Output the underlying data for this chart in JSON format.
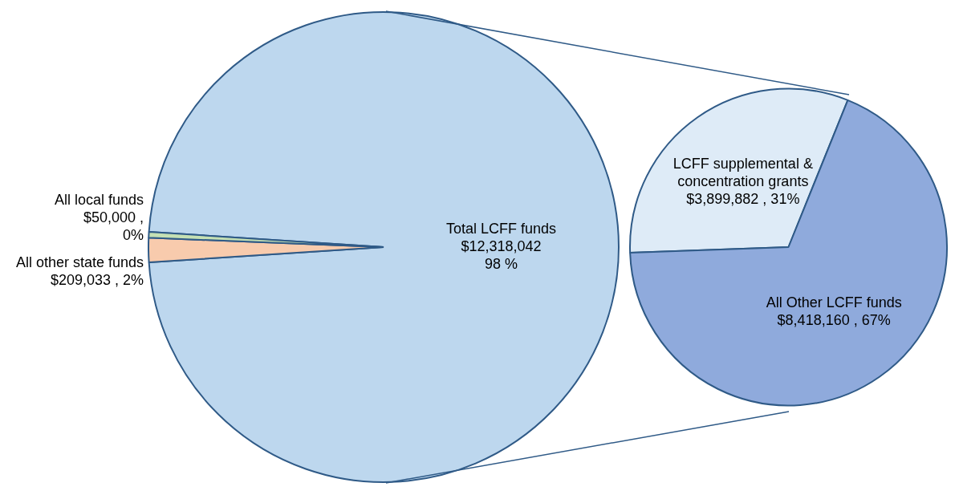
{
  "chart_data": [
    {
      "type": "pie",
      "categories": [
        "Total LCFF funds",
        "All other state funds",
        "All local funds"
      ],
      "values": [
        12318042,
        209033,
        50000
      ],
      "colors": [
        "#bdd7ee",
        "#f8cbad",
        "#c5e0b4"
      ],
      "value_labels": [
        "$12,318,042\n98 %",
        "$209,033 , 2%",
        "$50,000 ,\n0%"
      ]
    },
    {
      "type": "pie",
      "categories": [
        "LCFF supplemental & concentration grants",
        "All Other LCFF funds"
      ],
      "values": [
        3899882,
        8418160
      ],
      "colors": [
        "#deebf7",
        "#8faadc"
      ],
      "value_labels": [
        "$3,899,882 , 31%",
        "$8,418,160 , 67%"
      ]
    }
  ]
}
